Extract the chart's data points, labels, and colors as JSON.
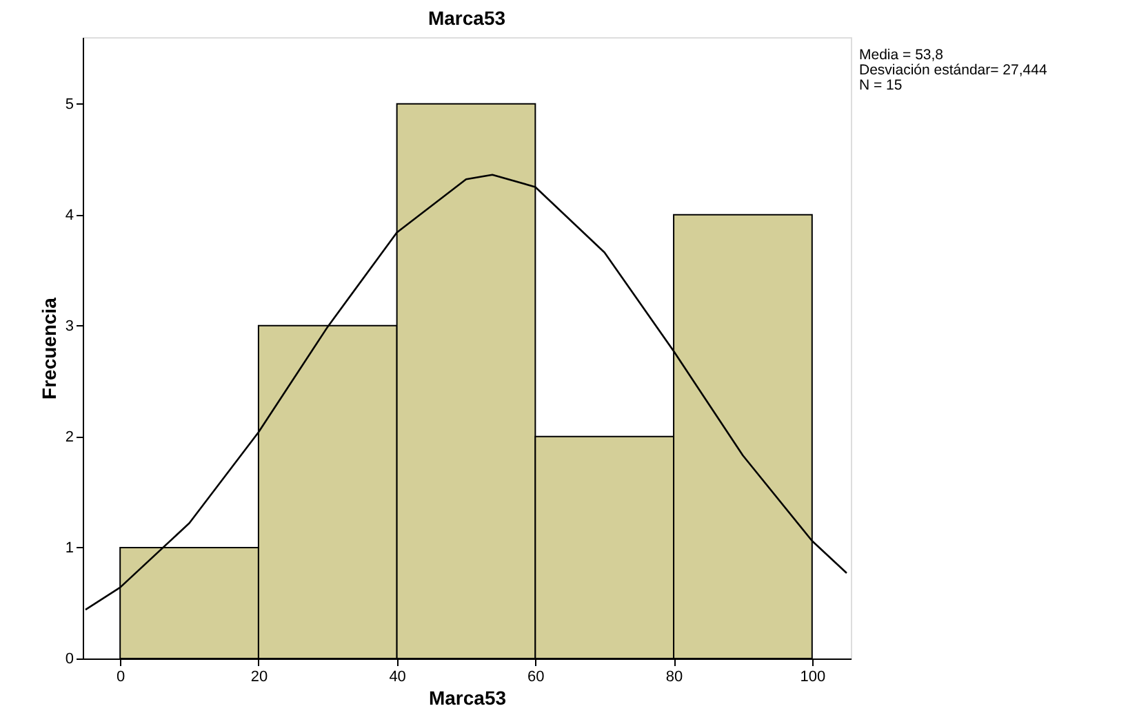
{
  "chart_data": {
    "type": "histogram",
    "title": "Marca53",
    "xlabel": "Marca53",
    "ylabel": "Frecuencia",
    "bins": [
      0,
      20,
      40,
      60,
      80,
      100
    ],
    "series": [
      {
        "color": "#d4cf98",
        "values": [
          1,
          3,
          5,
          2,
          4
        ]
      },
      {
        "type": "line",
        "color": "#000000",
        "x": [
          -5,
          0,
          10,
          20,
          30,
          40,
          50,
          53.8,
          60,
          70,
          80,
          90,
          100,
          105
        ],
        "values": [
          0.44,
          0.64,
          1.22,
          2.04,
          2.99,
          3.84,
          4.32,
          4.36,
          4.25,
          3.66,
          2.77,
          1.83,
          1.06,
          0.77
        ]
      }
    ],
    "xlim": [
      -5.4,
      105.6
    ],
    "ylim": [
      0,
      5.6
    ],
    "xticks": [
      0,
      20,
      40,
      60,
      80,
      100
    ],
    "yticks": [
      0,
      1,
      2,
      3,
      4,
      5
    ],
    "grid": false,
    "annotations": [
      "Media = 53,8",
      "Desviación estándar= 27,444",
      "N = 15"
    ]
  }
}
